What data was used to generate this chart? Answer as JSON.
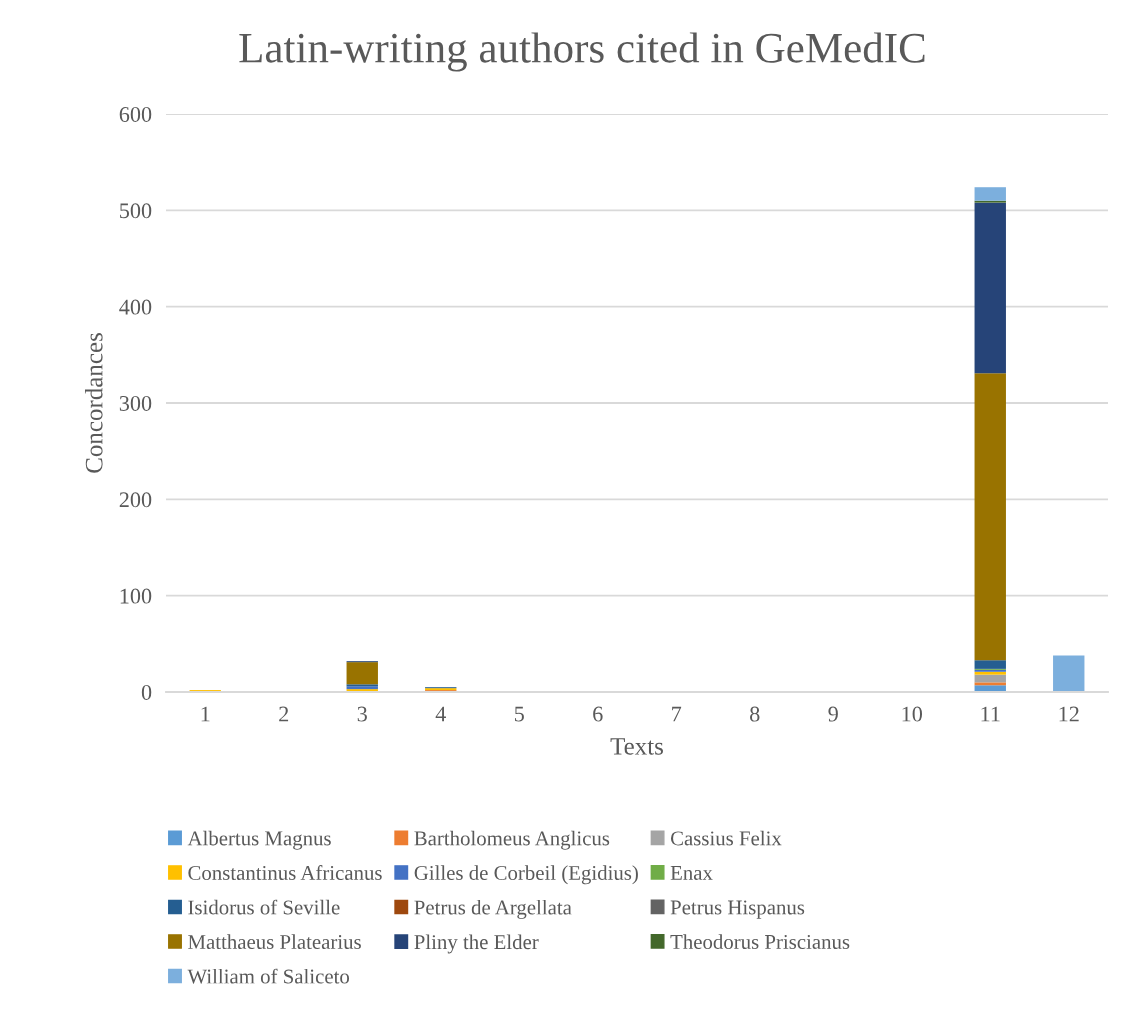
{
  "chart_data": {
    "type": "bar",
    "stacked": true,
    "title": "Latin-writing authors cited in GeMedIC",
    "xlabel": "Texts",
    "ylabel": "Concordances",
    "categories": [
      "1",
      "2",
      "3",
      "4",
      "5",
      "6",
      "7",
      "8",
      "9",
      "10",
      "11",
      "12"
    ],
    "series": [
      {
        "name": "Albertus Magnus",
        "color": "#5b9bd5",
        "values": [
          0,
          0,
          0,
          0,
          0,
          0,
          0,
          0,
          0,
          0,
          7,
          0
        ]
      },
      {
        "name": "Bartholomeus Anglicus",
        "color": "#ed7d31",
        "values": [
          0,
          0,
          0,
          2,
          0,
          0,
          0,
          0,
          0,
          0,
          3,
          0
        ]
      },
      {
        "name": "Cassius Felix",
        "color": "#a5a5a5",
        "values": [
          0,
          0,
          0,
          0,
          0,
          0,
          0,
          0,
          0,
          0,
          8,
          0
        ]
      },
      {
        "name": "Constantinus Africanus",
        "color": "#ffc000",
        "values": [
          2,
          0,
          3,
          2,
          null,
          0,
          0,
          0,
          0,
          0,
          3,
          0
        ]
      },
      {
        "name": "Gilles de Corbeil (Egidius)",
        "color": "#4472c4",
        "values": [
          0,
          0,
          3,
          0,
          0,
          0,
          0,
          0,
          0,
          0,
          2,
          0
        ]
      },
      {
        "name": "Enax",
        "color": "#70ad47",
        "values": [
          0,
          0,
          0,
          0,
          0,
          0,
          0,
          0,
          0,
          0,
          1,
          0
        ]
      },
      {
        "name": "Isidorus of Seville",
        "color": "#255e91",
        "values": [
          0,
          0,
          2,
          1,
          0,
          0,
          0,
          0,
          0,
          0,
          9,
          0
        ]
      },
      {
        "name": "Petrus de Argellata",
        "color": "#9e480e",
        "values": [
          0,
          0,
          0,
          0,
          0,
          0,
          0,
          0,
          0,
          0,
          0,
          0
        ]
      },
      {
        "name": "Petrus Hispanus",
        "color": "#636363",
        "values": [
          0,
          0,
          0,
          0,
          0,
          0,
          0,
          0,
          0,
          0,
          0,
          0
        ]
      },
      {
        "name": "Matthaeus Platearius",
        "color": "#997300",
        "values": [
          0,
          0,
          23,
          0,
          0,
          0,
          0,
          0,
          0,
          0,
          298,
          null
        ]
      },
      {
        "name": "Pliny the Elder",
        "color": "#264478",
        "values": [
          0,
          0,
          1,
          0,
          0,
          0,
          0,
          0,
          0,
          0,
          177,
          0
        ]
      },
      {
        "name": "Theodorus Priscianus",
        "color": "#43682b",
        "values": [
          0,
          0,
          0,
          0,
          0,
          0,
          0,
          0,
          0,
          0,
          2,
          0
        ]
      },
      {
        "name": "William of Saliceto",
        "color": "#7cafdd",
        "values": [
          0,
          0,
          0,
          0,
          0,
          0,
          0,
          0,
          0,
          0,
          14,
          38
        ]
      }
    ],
    "ylim": [
      0,
      600
    ],
    "yticks": [
      0,
      100,
      200,
      300,
      400,
      500,
      600
    ],
    "grid": "y",
    "legend": "bottom"
  }
}
